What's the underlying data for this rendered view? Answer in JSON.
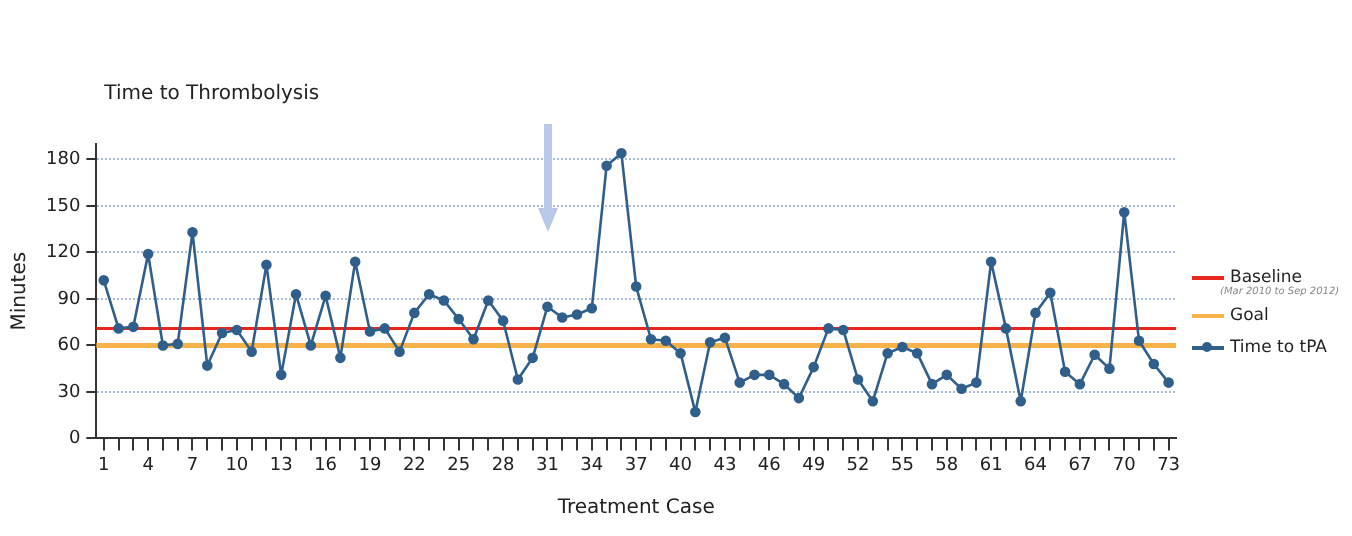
{
  "chart_data": {
    "type": "line",
    "title": "Time to Thrombolysis",
    "xlabel": "Treatment Case",
    "ylabel": "Minutes",
    "categories": [
      "1",
      null,
      null,
      "4",
      null,
      null,
      "7",
      null,
      null,
      "10",
      null,
      null,
      "13",
      null,
      null,
      "16",
      null,
      null,
      "19",
      null,
      null,
      "22",
      null,
      null,
      "25",
      null,
      null,
      "28",
      null,
      null,
      "31",
      null,
      null,
      "34",
      null,
      null,
      "37",
      null,
      null,
      "40",
      null,
      null,
      "43",
      null,
      null,
      "46",
      null,
      null,
      "49",
      null,
      null,
      "52",
      null,
      null,
      "55",
      null,
      null,
      "58",
      null,
      null,
      "61",
      null,
      null,
      "64",
      null,
      null,
      "67",
      null,
      null,
      "70",
      null,
      null,
      "73"
    ],
    "series": [
      {
        "name": "Time to tPA",
        "color": "#2f5f8a",
        "values": [
          102,
          71,
          72,
          119,
          60,
          61,
          133,
          47,
          68,
          70,
          56,
          112,
          41,
          93,
          60,
          92,
          52,
          114,
          69,
          71,
          56,
          81,
          93,
          89,
          77,
          64,
          89,
          76,
          38,
          52,
          85,
          78,
          80,
          84,
          176,
          184,
          98,
          64,
          63,
          55,
          17,
          62,
          65,
          36,
          41,
          41,
          35,
          26,
          46,
          71,
          70,
          38,
          24,
          55,
          59,
          55,
          35,
          41,
          32,
          36,
          114,
          71,
          24,
          81,
          94,
          43,
          35,
          54,
          45,
          146,
          63,
          48,
          36
        ]
      }
    ],
    "ref_lines": [
      {
        "axis": "y",
        "value": 71,
        "label": "Baseline",
        "color": "#e8281e"
      },
      {
        "axis": "y",
        "value": 60,
        "label": "Goal",
        "color": "#f7b24a"
      }
    ],
    "annotations": [
      "(Mar 2010 to Sep 2012)"
    ],
    "ylim": [
      0,
      190
    ],
    "yticks": [
      0,
      30,
      60,
      90,
      120,
      150,
      180
    ],
    "grid": "y",
    "legend": "right",
    "marker": "circle",
    "line_style": "solid"
  }
}
